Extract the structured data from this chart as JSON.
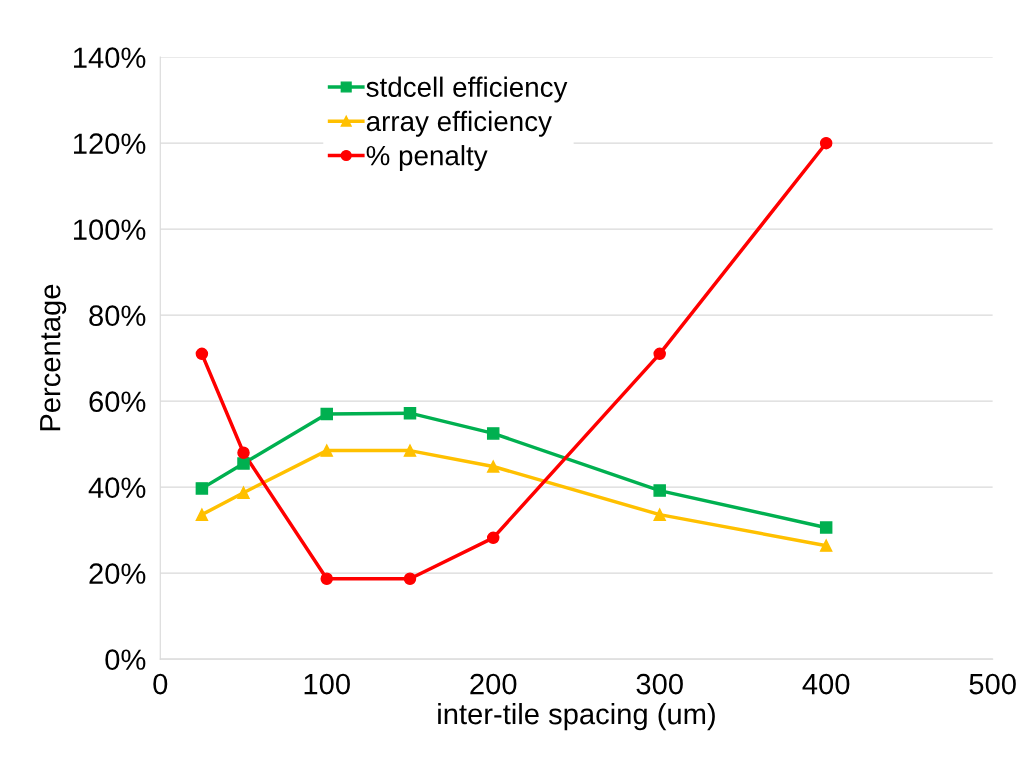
{
  "chart_data": {
    "type": "line",
    "xlabel": "inter-tile spacing (um)",
    "ylabel": "Percentage",
    "x": [
      25,
      50,
      100,
      150,
      200,
      300,
      400
    ],
    "series": [
      {
        "name": "stdcell efficiency",
        "color": "#00b050",
        "marker": "square",
        "values": [
          39.7,
          45.5,
          57.0,
          57.2,
          52.5,
          39.2,
          30.6
        ]
      },
      {
        "name": "array efficiency",
        "color": "#ffc000",
        "marker": "triangle",
        "values": [
          33.6,
          38.7,
          48.5,
          48.5,
          44.8,
          33.6,
          26.4
        ]
      },
      {
        "name": "% penalty",
        "color": "#ff0000",
        "marker": "circle",
        "values": [
          71.0,
          48.0,
          18.7,
          18.7,
          28.2,
          71.0,
          120.0
        ]
      }
    ],
    "xlim": [
      0,
      500
    ],
    "xticks": [
      0,
      100,
      200,
      300,
      400,
      500
    ],
    "ylim": [
      0,
      140
    ],
    "yticks": [
      {
        "value": 0,
        "label": "0%"
      },
      {
        "value": 20,
        "label": "20%"
      },
      {
        "value": 40,
        "label": "40%"
      },
      {
        "value": 60,
        "label": "60%"
      },
      {
        "value": 80,
        "label": "80%"
      },
      {
        "value": 100,
        "label": "100%"
      },
      {
        "value": 120,
        "label": "120%"
      },
      {
        "value": 140,
        "label": "140%"
      }
    ],
    "grid": "y",
    "legend": "top left",
    "line_style": "solid"
  }
}
